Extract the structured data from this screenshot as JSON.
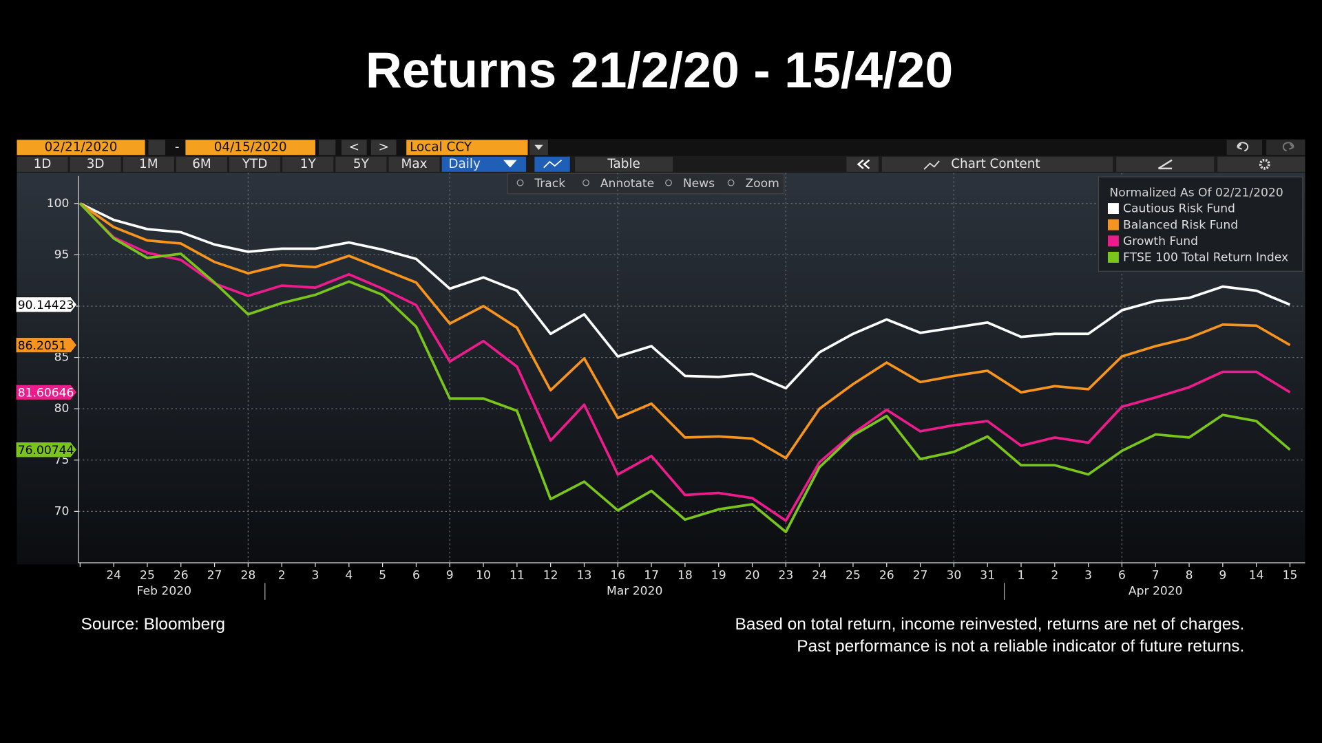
{
  "toolbar": {
    "start_date": "02/21/2020",
    "separator": "-",
    "end_date": "04/15/2020",
    "prev": "<",
    "next": ">",
    "currency": "Local CCY",
    "ranges": [
      "1D",
      "3D",
      "1M",
      "6M",
      "YTD",
      "1Y",
      "5Y",
      "Max"
    ],
    "period": "Daily",
    "table": "Table",
    "chart_content": "Chart Content",
    "tools": [
      "Track",
      "Annotate",
      "News",
      "Zoom"
    ]
  },
  "chart_data": {
    "type": "line",
    "title": "Returns 21/2/20 - 15/4/20",
    "legend_title": "Normalized As Of 02/21/2020",
    "legend": "upper right",
    "categories": [
      null,
      "24",
      "25",
      "26",
      "27",
      "28",
      "2",
      "3",
      "4",
      "5",
      "6",
      "9",
      "10",
      "11",
      "12",
      "13",
      "16",
      "17",
      "18",
      "19",
      "20",
      "23",
      "24",
      "25",
      "26",
      "27",
      "30",
      "31",
      "1",
      "2",
      "3",
      "6",
      "7",
      "8",
      "9",
      "14",
      "15"
    ],
    "groups": [
      {
        "label": "Feb 2020",
        "start": 0,
        "end": 5
      },
      {
        "label": "Mar 2020",
        "start": 6,
        "end": 27
      },
      {
        "label": "Apr 2020",
        "start": 28,
        "end": 36
      }
    ],
    "ylim": [
      65,
      103
    ],
    "yticks": [
      70,
      75,
      80,
      85,
      90,
      95,
      100
    ],
    "grid": true,
    "series": [
      {
        "name": "Cautious Risk Fund",
        "color": "#ffffff",
        "values": [
          100,
          98.4,
          97.5,
          97.2,
          96.0,
          95.3,
          95.6,
          95.6,
          96.2,
          95.5,
          94.6,
          91.7,
          92.8,
          91.5,
          87.3,
          89.2,
          85.1,
          86.1,
          83.2,
          83.1,
          83.4,
          82.0,
          85.5,
          87.3,
          88.7,
          87.4,
          87.9,
          88.4,
          87.0,
          87.3,
          87.3,
          89.6,
          90.5,
          90.8,
          91.9,
          91.5,
          90.14423
        ]
      },
      {
        "name": "Balanced Risk Fund",
        "color": "#f7941d",
        "values": [
          100,
          97.7,
          96.4,
          96.1,
          94.3,
          93.2,
          94.0,
          93.8,
          94.9,
          93.6,
          92.3,
          88.3,
          90.0,
          87.9,
          81.8,
          84.9,
          79.1,
          80.5,
          77.2,
          77.3,
          77.1,
          75.2,
          80.0,
          82.4,
          84.5,
          82.6,
          83.2,
          83.7,
          81.6,
          82.2,
          81.9,
          85.1,
          86.1,
          86.9,
          88.2,
          88.1,
          86.2051
        ]
      },
      {
        "name": "Growth Fund",
        "color": "#ec1c8c",
        "values": [
          100,
          96.7,
          95.2,
          94.5,
          92.2,
          91.0,
          92.0,
          91.8,
          93.1,
          91.7,
          90.1,
          84.6,
          86.6,
          84.1,
          76.9,
          80.4,
          73.6,
          75.4,
          71.6,
          71.8,
          71.3,
          69.1,
          74.8,
          77.6,
          79.9,
          77.8,
          78.4,
          78.8,
          76.4,
          77.2,
          76.7,
          80.2,
          81.1,
          82.1,
          83.6,
          83.6,
          81.60646
        ]
      },
      {
        "name": "FTSE 100 Total Return Index",
        "color": "#7ac51c",
        "values": [
          100,
          96.6,
          94.7,
          95.1,
          92.3,
          89.2,
          90.3,
          91.1,
          92.4,
          91.1,
          88.0,
          81.0,
          81.0,
          79.8,
          71.2,
          72.9,
          70.1,
          72.0,
          69.2,
          70.2,
          70.7,
          68.0,
          74.3,
          77.4,
          79.3,
          75.1,
          75.8,
          77.3,
          74.5,
          74.5,
          73.6,
          75.9,
          77.5,
          77.2,
          79.4,
          78.8,
          76.00744
        ]
      }
    ]
  },
  "footer": {
    "source": "Source: Bloomberg",
    "notes": [
      "Based on total return, income reinvested, returns are net of charges.",
      "Past performance is not a reliable indicator of future returns."
    ]
  }
}
